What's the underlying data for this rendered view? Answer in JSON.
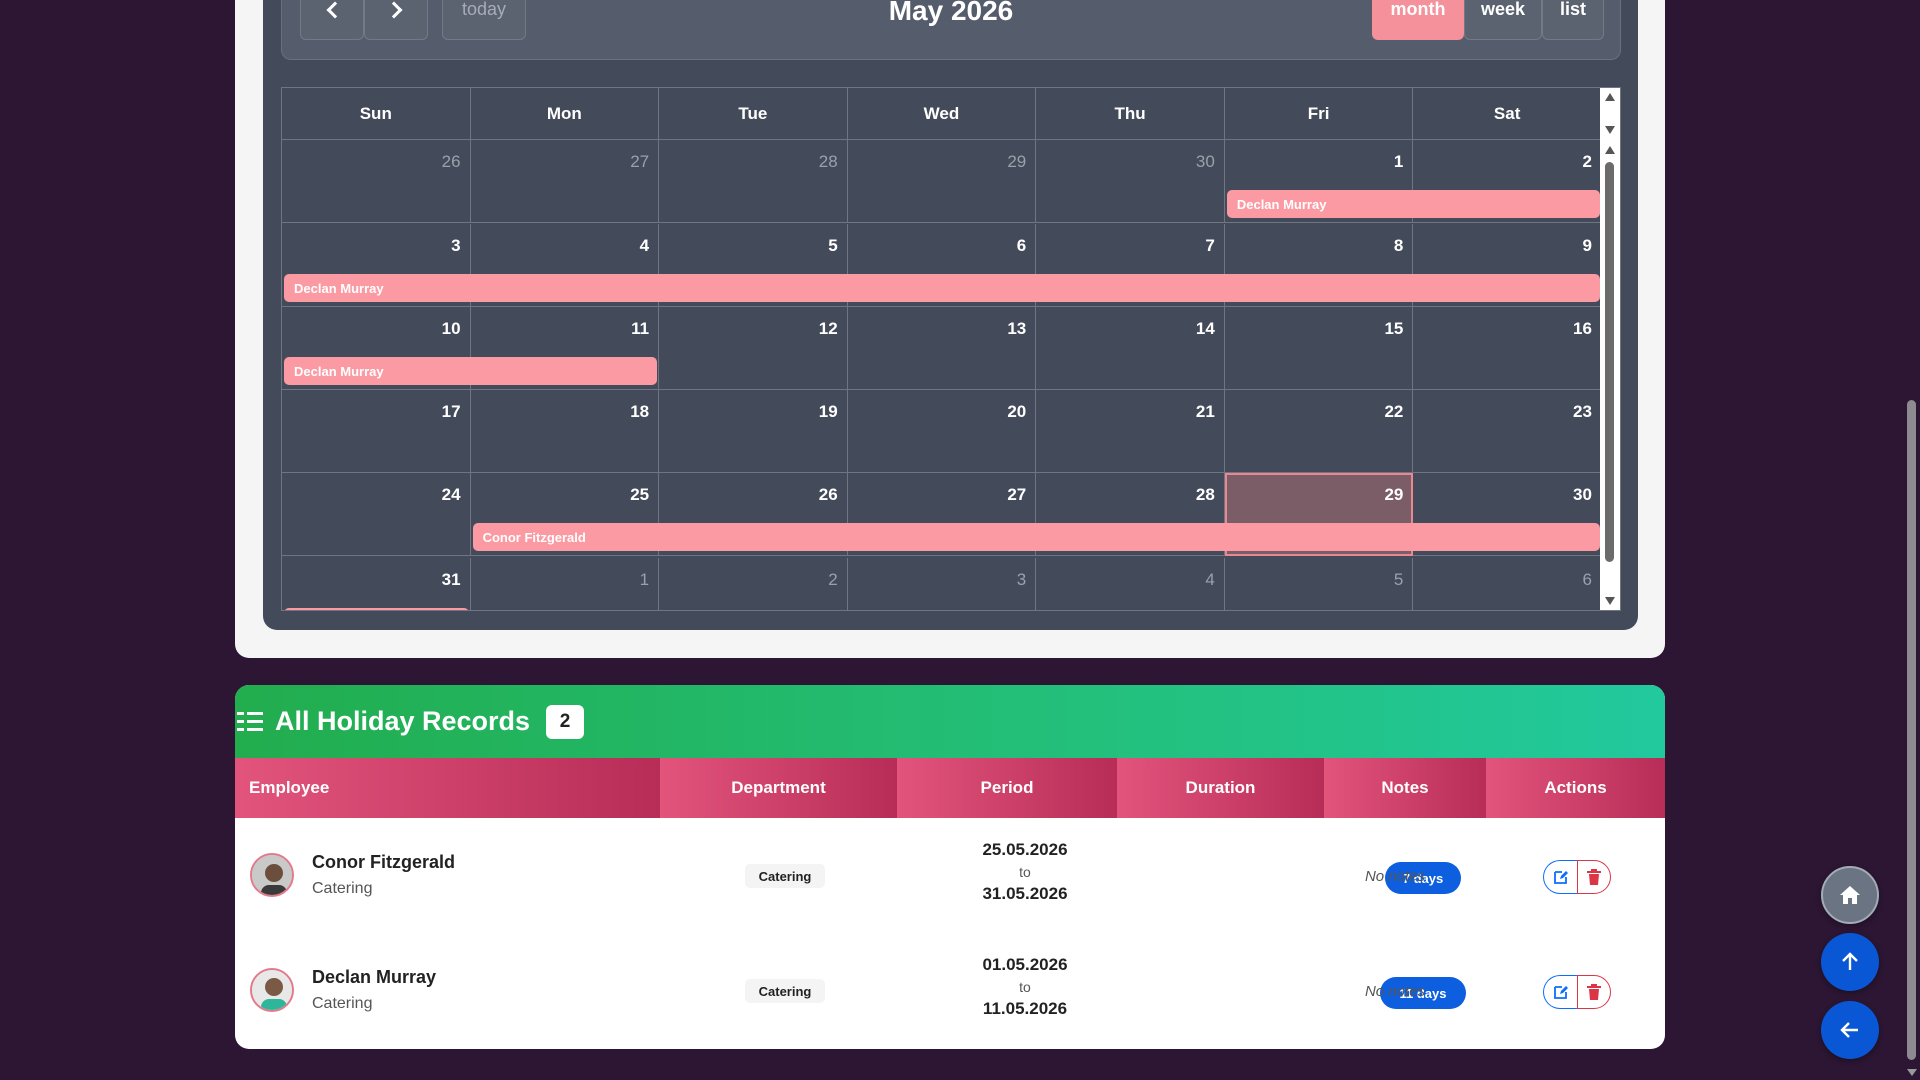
{
  "calendar": {
    "title": "May 2026",
    "nav": {
      "today_label": "today"
    },
    "views": [
      {
        "label": "month",
        "active": true
      },
      {
        "label": "week",
        "active": false
      },
      {
        "label": "list",
        "active": false
      }
    ],
    "days_of_week": [
      "Sun",
      "Mon",
      "Tue",
      "Wed",
      "Thu",
      "Fri",
      "Sat"
    ],
    "weeks": [
      [
        {
          "n": "26",
          "o": true
        },
        {
          "n": "27",
          "o": true
        },
        {
          "n": "28",
          "o": true
        },
        {
          "n": "29",
          "o": true
        },
        {
          "n": "30",
          "o": true
        },
        {
          "n": "1",
          "o": false
        },
        {
          "n": "2",
          "o": false
        }
      ],
      [
        {
          "n": "3",
          "o": false
        },
        {
          "n": "4",
          "o": false
        },
        {
          "n": "5",
          "o": false
        },
        {
          "n": "6",
          "o": false
        },
        {
          "n": "7",
          "o": false
        },
        {
          "n": "8",
          "o": false
        },
        {
          "n": "9",
          "o": false
        }
      ],
      [
        {
          "n": "10",
          "o": false
        },
        {
          "n": "11",
          "o": false
        },
        {
          "n": "12",
          "o": false
        },
        {
          "n": "13",
          "o": false
        },
        {
          "n": "14",
          "o": false
        },
        {
          "n": "15",
          "o": false
        },
        {
          "n": "16",
          "o": false
        }
      ],
      [
        {
          "n": "17",
          "o": false
        },
        {
          "n": "18",
          "o": false
        },
        {
          "n": "19",
          "o": false
        },
        {
          "n": "20",
          "o": false
        },
        {
          "n": "21",
          "o": false
        },
        {
          "n": "22",
          "o": false
        },
        {
          "n": "23",
          "o": false
        }
      ],
      [
        {
          "n": "24",
          "o": false
        },
        {
          "n": "25",
          "o": false
        },
        {
          "n": "26",
          "o": false
        },
        {
          "n": "27",
          "o": false
        },
        {
          "n": "28",
          "o": false
        },
        {
          "n": "29",
          "o": false,
          "today": true
        },
        {
          "n": "30",
          "o": false
        }
      ],
      [
        {
          "n": "31",
          "o": false
        },
        {
          "n": "1",
          "o": true
        },
        {
          "n": "2",
          "o": true
        },
        {
          "n": "3",
          "o": true
        },
        {
          "n": "4",
          "o": true
        },
        {
          "n": "5",
          "o": true
        },
        {
          "n": "6",
          "o": true
        }
      ]
    ],
    "events": [
      {
        "label": "Declan Murray",
        "week": 0,
        "start_day": 5,
        "end_day": 6
      },
      {
        "label": "Declan Murray",
        "week": 1,
        "start_day": 0,
        "end_day": 6
      },
      {
        "label": "Declan Murray",
        "week": 2,
        "start_day": 0,
        "end_day": 1
      },
      {
        "label": "Conor Fitzgerald",
        "week": 4,
        "start_day": 1,
        "end_day": 6
      },
      {
        "label": "",
        "week": 5,
        "start_day": 0,
        "end_day": 0
      }
    ],
    "colors": {
      "event": "#fb9aa2",
      "active_view": "#f4919a"
    }
  },
  "records": {
    "title": "All Holiday Records",
    "count": "2",
    "columns": [
      "Employee",
      "Department",
      "Period",
      "Duration",
      "Notes",
      "Actions"
    ],
    "rows": [
      {
        "name": "Conor Fitzgerald",
        "department": "Catering",
        "dept_badge": "Catering",
        "start": "25.05.2026",
        "to": "to",
        "end": "31.05.2026",
        "duration": "7 days",
        "notes": "No notes"
      },
      {
        "name": "Declan Murray",
        "department": "Catering",
        "dept_badge": "Catering",
        "start": "01.05.2026",
        "to": "to",
        "end": "11.05.2026",
        "duration": "11 days",
        "notes": "No notes"
      }
    ]
  },
  "icons": {
    "prev": "chevron-left-icon",
    "next": "chevron-right-icon",
    "list": "list-check-icon",
    "edit": "edit-icon",
    "delete": "trash-icon",
    "home": "home-icon",
    "up": "arrow-up-icon",
    "back": "arrow-left-icon"
  }
}
